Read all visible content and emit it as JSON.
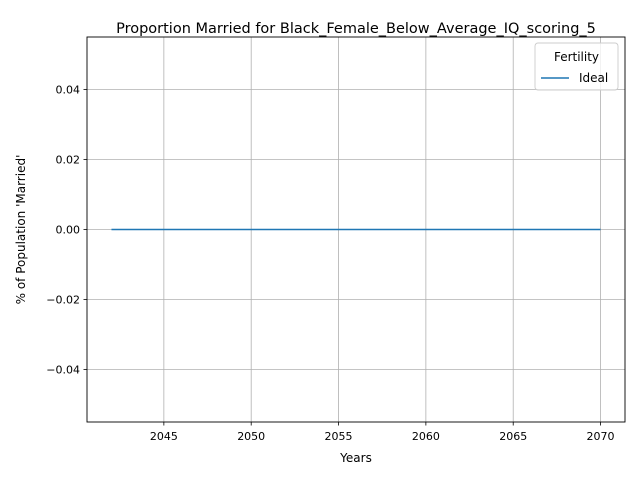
{
  "chart_data": {
    "type": "line",
    "title": "Proportion Married for Black_Female_Below_Average_IQ_scoring_5",
    "xlabel": "Years",
    "ylabel": "% of Population 'Married'",
    "xlim": [
      2040.6,
      2071.4
    ],
    "ylim": [
      -0.055,
      0.055
    ],
    "xticks": [
      2045,
      2050,
      2055,
      2060,
      2065,
      2070
    ],
    "yticks": [
      -0.04,
      -0.02,
      0.0,
      0.02,
      0.04
    ],
    "ytick_labels": [
      "−0.04",
      "−0.02",
      "0.00",
      "0.02",
      "0.04"
    ],
    "grid": true,
    "legend": {
      "title": "Fertility",
      "position": "top-right"
    },
    "series": [
      {
        "name": "Ideal",
        "color": "#1f77b4",
        "x": [
          2042,
          2043,
          2044,
          2045,
          2046,
          2047,
          2048,
          2049,
          2050,
          2051,
          2052,
          2053,
          2054,
          2055,
          2056,
          2057,
          2058,
          2059,
          2060,
          2061,
          2062,
          2063,
          2064,
          2065,
          2066,
          2067,
          2068,
          2069,
          2070
        ],
        "y": [
          0,
          0,
          0,
          0,
          0,
          0,
          0,
          0,
          0,
          0,
          0,
          0,
          0,
          0,
          0,
          0,
          0,
          0,
          0,
          0,
          0,
          0,
          0,
          0,
          0,
          0,
          0,
          0,
          0
        ]
      }
    ]
  }
}
